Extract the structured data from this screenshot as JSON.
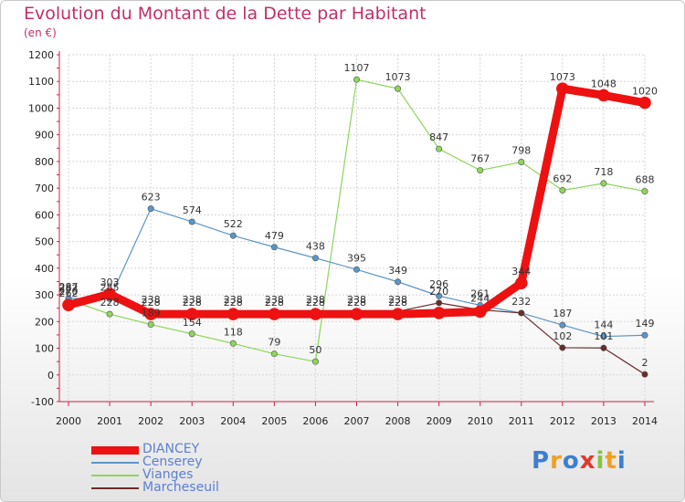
{
  "title": "Evolution du Montant de la Dette par Habitant",
  "subtitle": "(en €)",
  "logo": "Proxiti",
  "chart_data": {
    "type": "line",
    "title": "Evolution du Montant de la Dette par Habitant",
    "subtitle": "(en €)",
    "x": [
      "2000",
      "2001",
      "2002",
      "2003",
      "2004",
      "2005",
      "2006",
      "2007",
      "2008",
      "2009",
      "2010",
      "2011",
      "2012",
      "2013",
      "2014"
    ],
    "ylim": [
      -100,
      1200
    ],
    "yticks": [
      -100,
      0,
      100,
      200,
      300,
      400,
      500,
      600,
      700,
      800,
      900,
      1000,
      1100,
      1200
    ],
    "grid": true,
    "legend": "bottom-left",
    "series": [
      {
        "name": "DIANCEY",
        "color": "#ee1111",
        "values": [
          262,
          303,
          228,
          228,
          228,
          228,
          228,
          228,
          228,
          232,
          237,
          344,
          1073,
          1048,
          1020
        ]
      },
      {
        "name": "Censerey",
        "color": "#5b96c8",
        "values": [
          287,
          285,
          623,
          574,
          522,
          479,
          438,
          395,
          349,
          296,
          261,
          232,
          187,
          144,
          149
        ]
      },
      {
        "name": "Vianges",
        "color": "#8ed65a",
        "values": [
          282,
          228,
          189,
          154,
          118,
          79,
          50,
          1107,
          1073,
          847,
          767,
          798,
          692,
          718,
          688
        ]
      },
      {
        "name": "Marcheseuil",
        "color": "#6b2b2b",
        "values": [
          270,
          290,
          238,
          238,
          238,
          238,
          238,
          238,
          238,
          270,
          244,
          232,
          102,
          101,
          2
        ]
      }
    ],
    "value_labels": [
      [
        "262",
        "303",
        "228",
        "228",
        "228",
        "228",
        "228",
        "228",
        "228",
        "",
        "",
        "344",
        "1073",
        "1048",
        "1020"
      ],
      [
        "287",
        "285",
        "623",
        "574",
        "522",
        "479",
        "438",
        "395",
        "349",
        "296",
        "261",
        "",
        "187",
        "144",
        "149"
      ],
      [
        "282",
        "228",
        "189",
        "154",
        "118",
        "79",
        "50",
        "1107",
        "1073",
        "847",
        "767",
        "798",
        "692",
        "718",
        "688"
      ],
      [
        "270",
        "",
        "238",
        "238",
        "238",
        "238",
        "238",
        "238",
        "238",
        "270",
        "244",
        "232",
        "102",
        "101",
        "2"
      ]
    ]
  }
}
